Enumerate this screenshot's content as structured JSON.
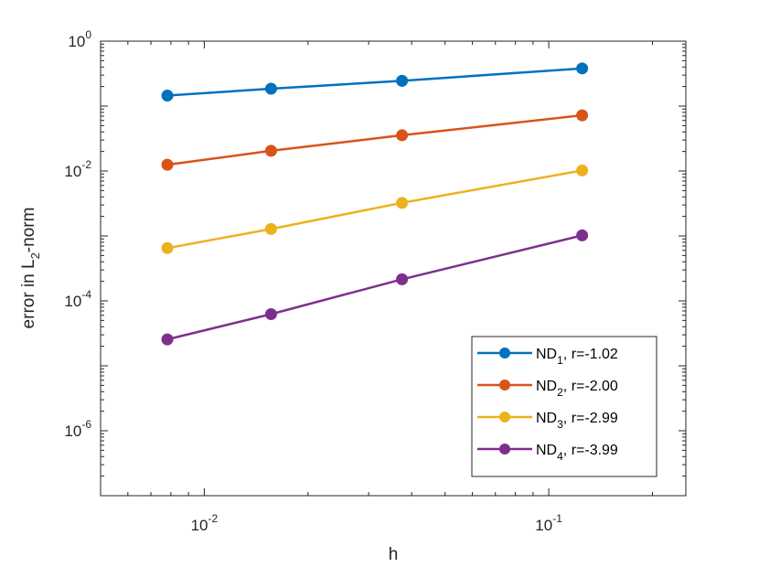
{
  "chart_data": {
    "type": "line",
    "xscale": "log",
    "yscale": "log",
    "xlabel": "h",
    "ylabel": "error in L_2-norm",
    "ylabel_parts": {
      "pre": "error in L",
      "sub": "2",
      "post": "-norm"
    },
    "xlim": [
      0.005,
      0.25
    ],
    "ylim": [
      1e-07,
      1
    ],
    "xticks": [
      {
        "value": 0.01,
        "base": "10",
        "exp": "-2"
      },
      {
        "value": 0.1,
        "base": "10",
        "exp": "-1"
      }
    ],
    "yticks": [
      {
        "value": 1,
        "base": "10",
        "exp": "0"
      },
      {
        "value": 0.01,
        "base": "10",
        "exp": "-2"
      },
      {
        "value": 0.0001,
        "base": "10",
        "exp": "-4"
      },
      {
        "value": 1e-06,
        "base": "10",
        "exp": "-6"
      }
    ],
    "legend_location": "bottom-right",
    "x": [
      0.0078125,
      0.015625,
      0.0375,
      0.125
    ],
    "series": [
      {
        "name": "ND_1, r=-1.02",
        "label_main": "ND",
        "label_sub": "1",
        "label_rest": ", r=-1.02",
        "color": "#0072BD",
        "values": [
          0.145,
          0.185,
          0.245,
          0.38
        ]
      },
      {
        "name": "ND_2, r=-2.00",
        "label_main": "ND",
        "label_sub": "2",
        "label_rest": ", r=-2.00",
        "color": "#D95319",
        "values": [
          0.0125,
          0.0205,
          0.0355,
          0.072
        ]
      },
      {
        "name": "ND_3, r=-2.99",
        "label_main": "ND",
        "label_sub": "3",
        "label_rest": ", r=-2.99",
        "color": "#EDB120",
        "values": [
          0.00065,
          0.00128,
          0.00323,
          0.0102
        ]
      },
      {
        "name": "ND_4, r=-3.99",
        "label_main": "ND",
        "label_sub": "4",
        "label_rest": ", r=-3.99",
        "color": "#7E2F8E",
        "values": [
          2.55e-05,
          6.25e-05,
          0.000215,
          0.00102
        ]
      }
    ]
  }
}
